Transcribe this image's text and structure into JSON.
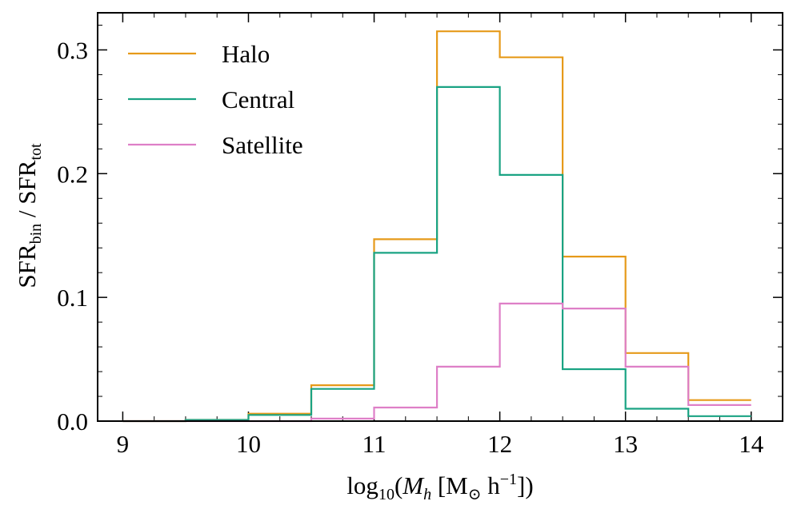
{
  "chart_data": {
    "type": "line",
    "subtype": "step-histogram",
    "title": "",
    "xlabel": {
      "prefix": "log",
      "sub10": "10",
      "open": "(",
      "var": "M",
      "var_sub": "h",
      "space": " ",
      "unit_open": "[M",
      "odot": "⊙",
      "unit_h": " h",
      "unit_exp": "−1",
      "close": "])"
    },
    "ylabel": {
      "sfr1": "SFR",
      "sub1": "bin",
      "slash": " / ",
      "sfr2": "SFR",
      "sub2": "tot"
    },
    "xlim": [
      8.8,
      14.25
    ],
    "ylim": [
      0.0,
      0.33
    ],
    "xticks": [
      9,
      10,
      11,
      12,
      13,
      14
    ],
    "xtick_labels": [
      "9",
      "10",
      "11",
      "12",
      "13",
      "14"
    ],
    "yticks": [
      0.0,
      0.1,
      0.2,
      0.3
    ],
    "ytick_labels": [
      "0.0",
      "0.1",
      "0.2",
      "0.3"
    ],
    "bin_edges": [
      9.0,
      9.5,
      10.0,
      10.5,
      11.0,
      11.5,
      12.0,
      12.5,
      13.0,
      13.5,
      14.0
    ],
    "legend_position": "upper-left",
    "series": [
      {
        "name": "Halo",
        "color": "#e69a1a",
        "values": [
          0.0,
          0.001,
          0.006,
          0.029,
          0.147,
          0.315,
          0.294,
          0.133,
          0.055,
          0.017
        ]
      },
      {
        "name": "Central",
        "color": "#1aa383",
        "values": [
          0.0,
          0.001,
          0.005,
          0.026,
          0.136,
          0.27,
          0.199,
          0.042,
          0.01,
          0.004
        ]
      },
      {
        "name": "Satellite",
        "color": "#de7fc7",
        "values": [
          0.0,
          0.0,
          0.0,
          0.002,
          0.011,
          0.044,
          0.095,
          0.091,
          0.044,
          0.013
        ]
      }
    ]
  }
}
